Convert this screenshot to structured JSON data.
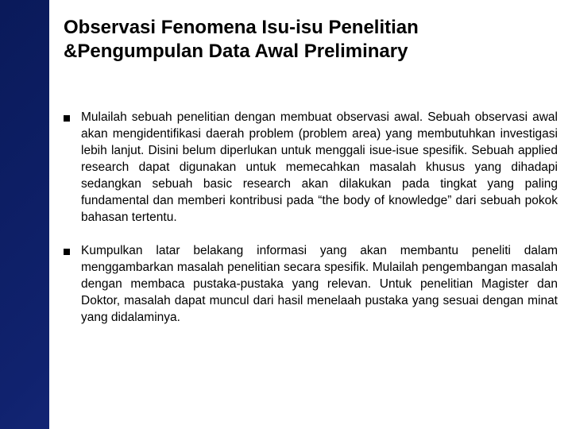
{
  "slide": {
    "background_gradient": [
      "#0a1a5a",
      "#10226e",
      "#1a2d85",
      "#2a3a9a"
    ],
    "panel_background": "#ffffff",
    "title": "Observasi Fenomena Isu-isu Penelitian &Pengumpulan Data Awal Preliminary",
    "title_color": "#000000",
    "title_fontsize": 24,
    "title_fontweight": "bold",
    "body_fontsize": 15.5,
    "body_color": "#000000",
    "bullet_marker_color": "#000000",
    "bullets": [
      "Mulailah sebuah penelitian dengan membuat observasi awal. Sebuah observasi awal akan mengidentifikasi daerah problem (problem area) yang membutuhkan investigasi lebih lanjut. Disini belum diperlukan untuk menggali isue-isue spesifik. Sebuah applied research dapat digunakan untuk memecahkan masalah khusus yang dihadapi sedangkan sebuah basic research akan dilakukan pada tingkat yang paling fundamental dan memberi kontribusi pada “the body of knowledge” dari sebuah pokok bahasan tertentu.",
      "Kumpulkan latar belakang informasi yang akan membantu peneliti dalam menggambarkan masalah penelitian secara spesifik. Mulailah pengembangan masalah dengan membaca pustaka-pustaka yang relevan. Untuk penelitian Magister dan Doktor, masalah dapat muncul dari hasil menelaah pustaka yang sesuai dengan minat yang didalaminya."
    ]
  }
}
